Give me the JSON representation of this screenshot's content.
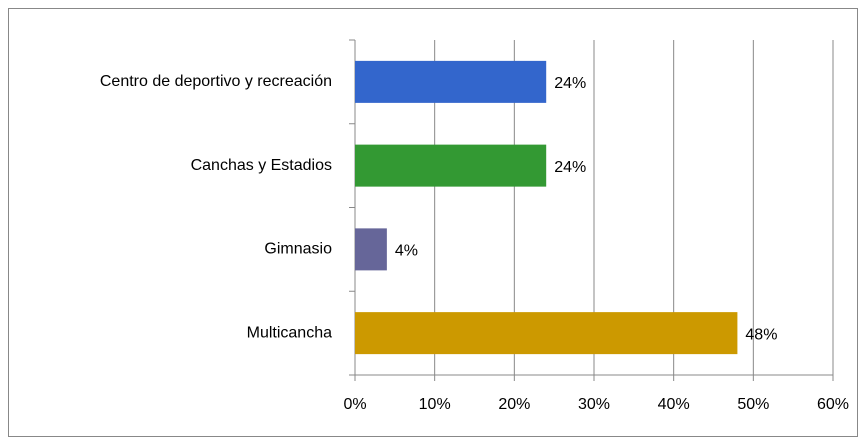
{
  "chart_data": {
    "type": "barh",
    "categories": [
      "Centro de deportivo y recreación",
      "Canchas y Estadios",
      "Gimnasio",
      "Multicancha"
    ],
    "values": [
      24,
      24,
      4,
      48
    ],
    "value_labels": [
      "24%",
      "24%",
      "4%",
      "48%"
    ],
    "colors": [
      "#3366cc",
      "#339933",
      "#666699",
      "#cc9900"
    ],
    "xlim": [
      0,
      60
    ],
    "xticks": [
      {
        "value": 0,
        "label": "0%"
      },
      {
        "value": 10,
        "label": "10%"
      },
      {
        "value": 20,
        "label": "20%"
      },
      {
        "value": 30,
        "label": "30%"
      },
      {
        "value": 40,
        "label": "40%"
      },
      {
        "value": 50,
        "label": "50%"
      },
      {
        "value": 60,
        "label": "60%"
      }
    ],
    "grid": true
  }
}
